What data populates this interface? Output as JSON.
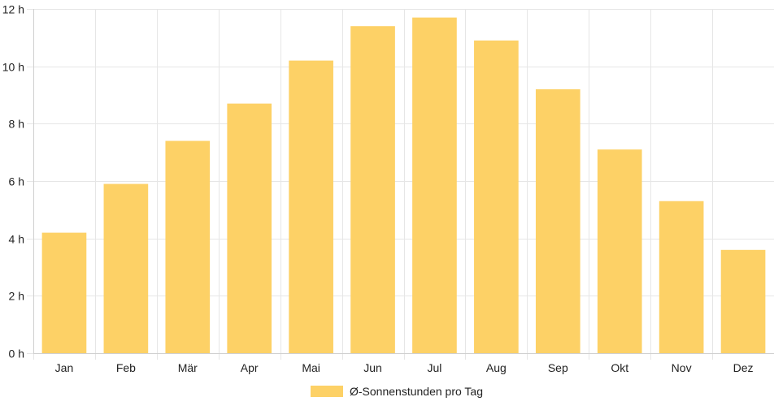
{
  "chart_data": {
    "type": "bar",
    "title": "",
    "xlabel": "",
    "ylabel": "",
    "categories": [
      "Jan",
      "Feb",
      "Mär",
      "Apr",
      "Mai",
      "Jun",
      "Jul",
      "Aug",
      "Sep",
      "Okt",
      "Nov",
      "Dez"
    ],
    "series": [
      {
        "name": "Ø-Sonnenstunden pro Tag",
        "color": "#FDD166",
        "values": [
          4.2,
          5.9,
          7.4,
          8.7,
          10.2,
          11.4,
          11.7,
          10.9,
          9.2,
          7.1,
          5.3,
          3.6
        ]
      }
    ],
    "ylim": [
      0,
      12
    ],
    "yticks": [
      0,
      2,
      4,
      6,
      8,
      10,
      12
    ],
    "ytick_labels": [
      "0 h",
      "2 h",
      "4 h",
      "6 h",
      "8 h",
      "10 h",
      "12 h"
    ],
    "grid": true,
    "legend_position": "bottom"
  }
}
